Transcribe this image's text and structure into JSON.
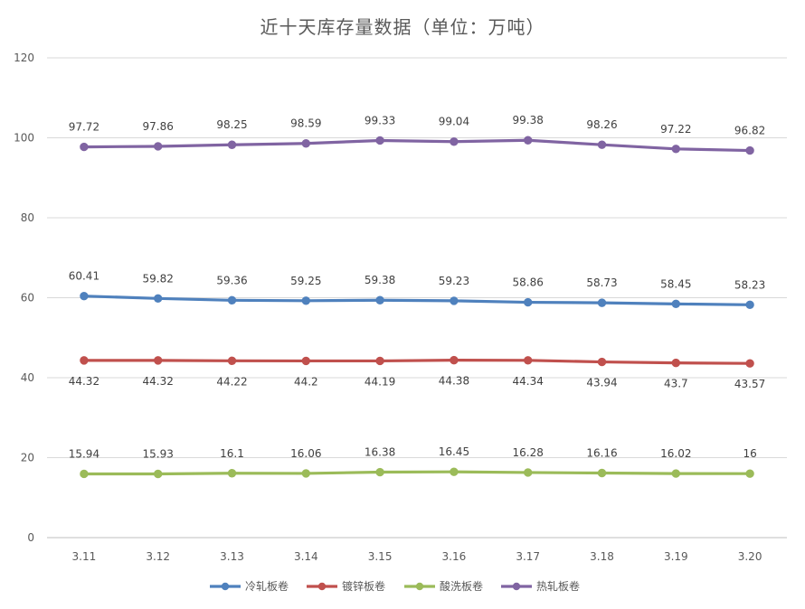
{
  "chart_data": {
    "type": "line",
    "title": "近十天库存量数据（单位：万吨）",
    "xlabel": "",
    "ylabel": "",
    "ylim": [
      0,
      120
    ],
    "yticks": [
      "0",
      "20",
      "40",
      "60",
      "80",
      "100",
      "120"
    ],
    "categories": [
      "3.11",
      "3.12",
      "3.13",
      "3.14",
      "3.15",
      "3.16",
      "3.17",
      "3.18",
      "3.19",
      "3.20"
    ],
    "grid": true,
    "legend_position": "bottom",
    "series": [
      {
        "name": "冷轧板卷",
        "color": "#4f81bd",
        "label_pos": "above",
        "values": [
          60.41,
          59.82,
          59.36,
          59.25,
          59.38,
          59.23,
          58.86,
          58.73,
          58.45,
          58.23
        ],
        "labels": [
          "60.41",
          "59.82",
          "59.36",
          "59.25",
          "59.38",
          "59.23",
          "58.86",
          "58.73",
          "58.45",
          "58.23"
        ]
      },
      {
        "name": "镀锌板卷",
        "color": "#c0504d",
        "label_pos": "below",
        "values": [
          44.32,
          44.32,
          44.22,
          44.2,
          44.19,
          44.38,
          44.34,
          43.94,
          43.7,
          43.57
        ],
        "labels": [
          "44.32",
          "44.32",
          "44.22",
          "44.2",
          "44.19",
          "44.38",
          "44.34",
          "43.94",
          "43.7",
          "43.57"
        ]
      },
      {
        "name": "酸洗板卷",
        "color": "#9bbb59",
        "label_pos": "above",
        "values": [
          15.94,
          15.93,
          16.1,
          16.06,
          16.38,
          16.45,
          16.28,
          16.16,
          16.02,
          16
        ],
        "labels": [
          "15.94",
          "15.93",
          "16.1",
          "16.06",
          "16.38",
          "16.45",
          "16.28",
          "16.16",
          "16.02",
          "16"
        ]
      },
      {
        "name": "热轧板卷",
        "color": "#8064a2",
        "label_pos": "above",
        "values": [
          97.72,
          97.86,
          98.25,
          98.59,
          99.33,
          99.04,
          99.38,
          98.26,
          97.22,
          96.82
        ],
        "labels": [
          "97.72",
          "97.86",
          "98.25",
          "98.59",
          "99.33",
          "99.04",
          "99.38",
          "98.26",
          "97.22",
          "96.82"
        ]
      }
    ]
  }
}
